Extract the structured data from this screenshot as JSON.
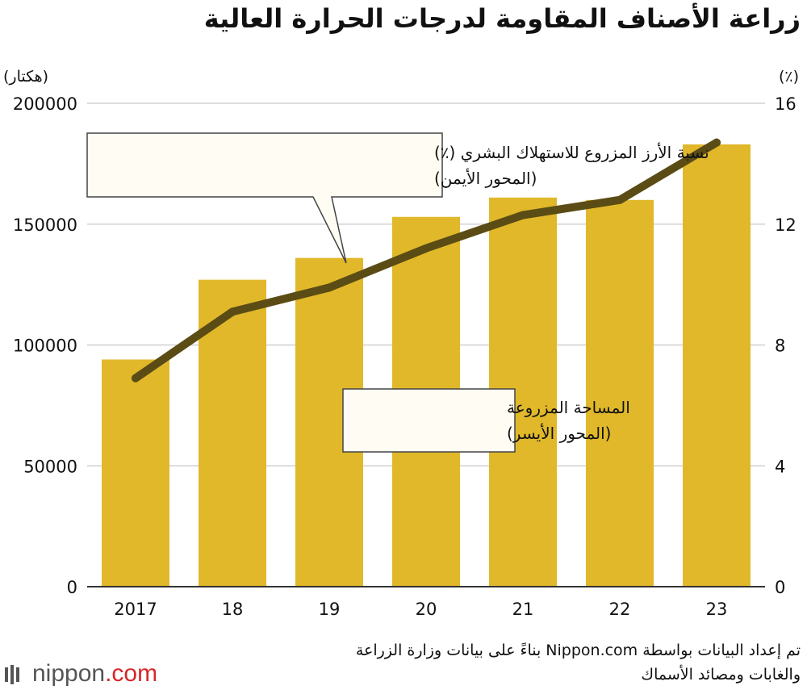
{
  "title": "زراعة الأصناف المقاومة لدرجات الحرارة العالية",
  "chart_data": {
    "type": "bar+line",
    "categories": [
      "2017",
      "18",
      "19",
      "20",
      "21",
      "22",
      "23"
    ],
    "series": [
      {
        "name": "المساحة المزروعة (المحور الأيسر)",
        "type": "bar",
        "axis": "left",
        "values": [
          94000,
          127000,
          136000,
          153000,
          161000,
          160000,
          183000
        ]
      },
      {
        "name": "نسبة الأرز المزروع للاستهلاك البشري (٪) (المحور الأيمن)",
        "type": "line",
        "axis": "right",
        "values": [
          6.9,
          9.1,
          9.9,
          11.2,
          12.3,
          12.8,
          14.7
        ]
      }
    ],
    "left_axis": {
      "unit": "(هكتار)",
      "ylim": [
        0,
        200000
      ],
      "ticks": [
        0,
        50000,
        100000,
        150000,
        200000
      ]
    },
    "right_axis": {
      "unit": "(٪)",
      "ylim": [
        0,
        16
      ],
      "ticks": [
        0,
        4,
        8,
        12,
        16
      ]
    },
    "annotations": {
      "line": [
        "نسبة الأرز المزروع للاستهلاك البشري (٪)",
        "(المحور الأيمن)"
      ],
      "bars": [
        "المساحة المزروعة",
        "(المحور الأيسر)"
      ]
    },
    "grid": true,
    "colors": {
      "bar": "#e0b82a",
      "line": "#5a4c14",
      "grid": "#d0d0d0",
      "axis": "#333333"
    }
  },
  "footer": {
    "source_line1": "تم إعداد البيانات بواسطة Nippon.com بناءً على بيانات وزارة الزراعة",
    "source_line2": "والغابات ومصائد الأسماك",
    "logo_name": "nippon",
    "logo_suffix": ".com"
  }
}
